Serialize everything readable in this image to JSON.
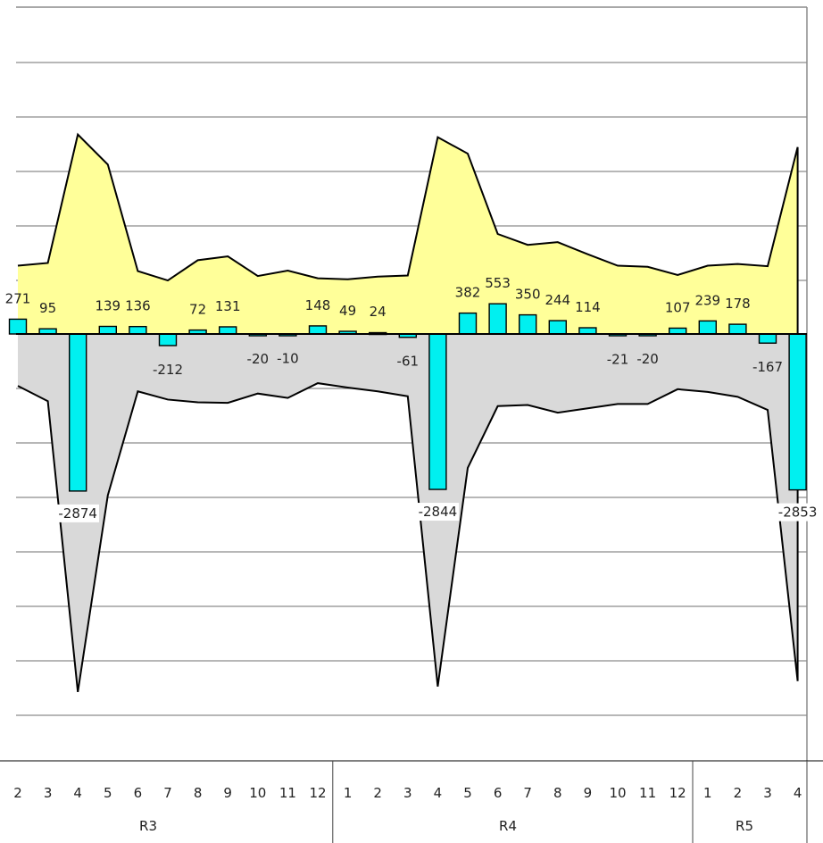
{
  "chart_data": {
    "type": "bar",
    "description_free": true,
    "categories": [
      "2",
      "3",
      "4",
      "5",
      "6",
      "7",
      "8",
      "9",
      "10",
      "11",
      "12",
      "1",
      "2",
      "3",
      "4",
      "5",
      "6",
      "7",
      "8",
      "9",
      "10",
      "11",
      "12",
      "1",
      "2",
      "3",
      "4"
    ],
    "groups": [
      {
        "label": "R3",
        "start": 0,
        "end": 10
      },
      {
        "label": "R4",
        "start": 11,
        "end": 22
      },
      {
        "label": "R5",
        "start": 23,
        "end": 26
      }
    ],
    "bar_values": [
      271,
      95,
      -2874,
      139,
      136,
      -212,
      72,
      131,
      -20,
      -10,
      148,
      49,
      24,
      -61,
      -2844,
      382,
      553,
      350,
      244,
      114,
      -21,
      -20,
      107,
      239,
      178,
      -167,
      -2853
    ],
    "bar_labels": [
      "271",
      "95",
      "-2874",
      "139",
      "136",
      "-212",
      "72",
      "131",
      "-20",
      "-10",
      "148",
      "49",
      "24",
      "-61",
      "-2844",
      "382",
      "553",
      "350",
      "244",
      "114",
      "-21",
      "-20",
      "107",
      "239",
      "178",
      "-167",
      "-2853"
    ],
    "upper_area": [
      1250,
      1300,
      3650,
      3100,
      1150,
      980,
      1350,
      1420,
      1060,
      1160,
      1020,
      1000,
      1050,
      1070,
      3600,
      3300,
      1830,
      1630,
      1680,
      1460,
      1250,
      1230,
      1080,
      1250,
      1280,
      1240,
      3420
    ],
    "lower_area": [
      -950,
      -1230,
      -6550,
      -2950,
      -1050,
      -1200,
      -1250,
      -1260,
      -1090,
      -1170,
      -900,
      -980,
      -1050,
      -1140,
      -6450,
      -2450,
      -1320,
      -1300,
      -1440,
      -1360,
      -1280,
      -1280,
      -1010,
      -1060,
      -1150,
      -1390,
      -6350
    ],
    "ylim": [
      -7800,
      6100
    ],
    "colors": {
      "bar": "#00F0F0",
      "upper_area": "#FFFF99",
      "lower_area": "#D9D9D9",
      "outline": "#000000",
      "grid": "#8C8C8C"
    },
    "grid": true
  }
}
